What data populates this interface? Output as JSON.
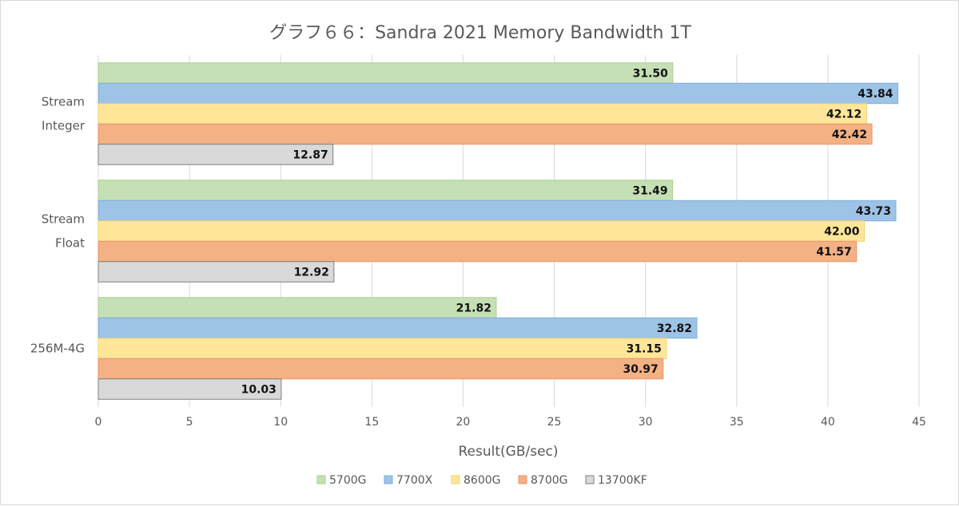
{
  "chart_data": {
    "type": "bar",
    "orientation": "horizontal",
    "title": "グラフ６６：Sandra 2021 Memory Bandwidth 1T",
    "xlabel": "Result(GB/sec)",
    "ylabel": "",
    "xlim": [
      0,
      45
    ],
    "x_ticks": [
      0,
      5,
      10,
      15,
      20,
      25,
      30,
      35,
      40,
      45
    ],
    "grid": true,
    "legend_position": "bottom",
    "categories": [
      {
        "lines": [
          "Stream",
          "Integer"
        ]
      },
      {
        "lines": [
          "Stream",
          "Float"
        ]
      },
      {
        "lines": [
          "256M-4G"
        ]
      }
    ],
    "series": [
      {
        "name": "5700G",
        "color": "#c5e0b4",
        "stroke": "#a9d18e",
        "values": [
          31.5,
          31.49,
          21.82
        ]
      },
      {
        "name": "7700X",
        "color": "#9dc3e6",
        "stroke": "#7fafdb",
        "values": [
          43.84,
          43.73,
          32.82
        ]
      },
      {
        "name": "8600G",
        "color": "#ffe699",
        "stroke": "#f2d06b",
        "values": [
          42.12,
          42.0,
          31.15
        ]
      },
      {
        "name": "8700G",
        "color": "#f4b183",
        "stroke": "#e9956a",
        "values": [
          42.42,
          41.57,
          30.97
        ]
      },
      {
        "name": "13700KF",
        "color": "#d9d9d9",
        "stroke": "#7f7f7f",
        "values": [
          12.87,
          12.92,
          10.03
        ]
      }
    ]
  }
}
